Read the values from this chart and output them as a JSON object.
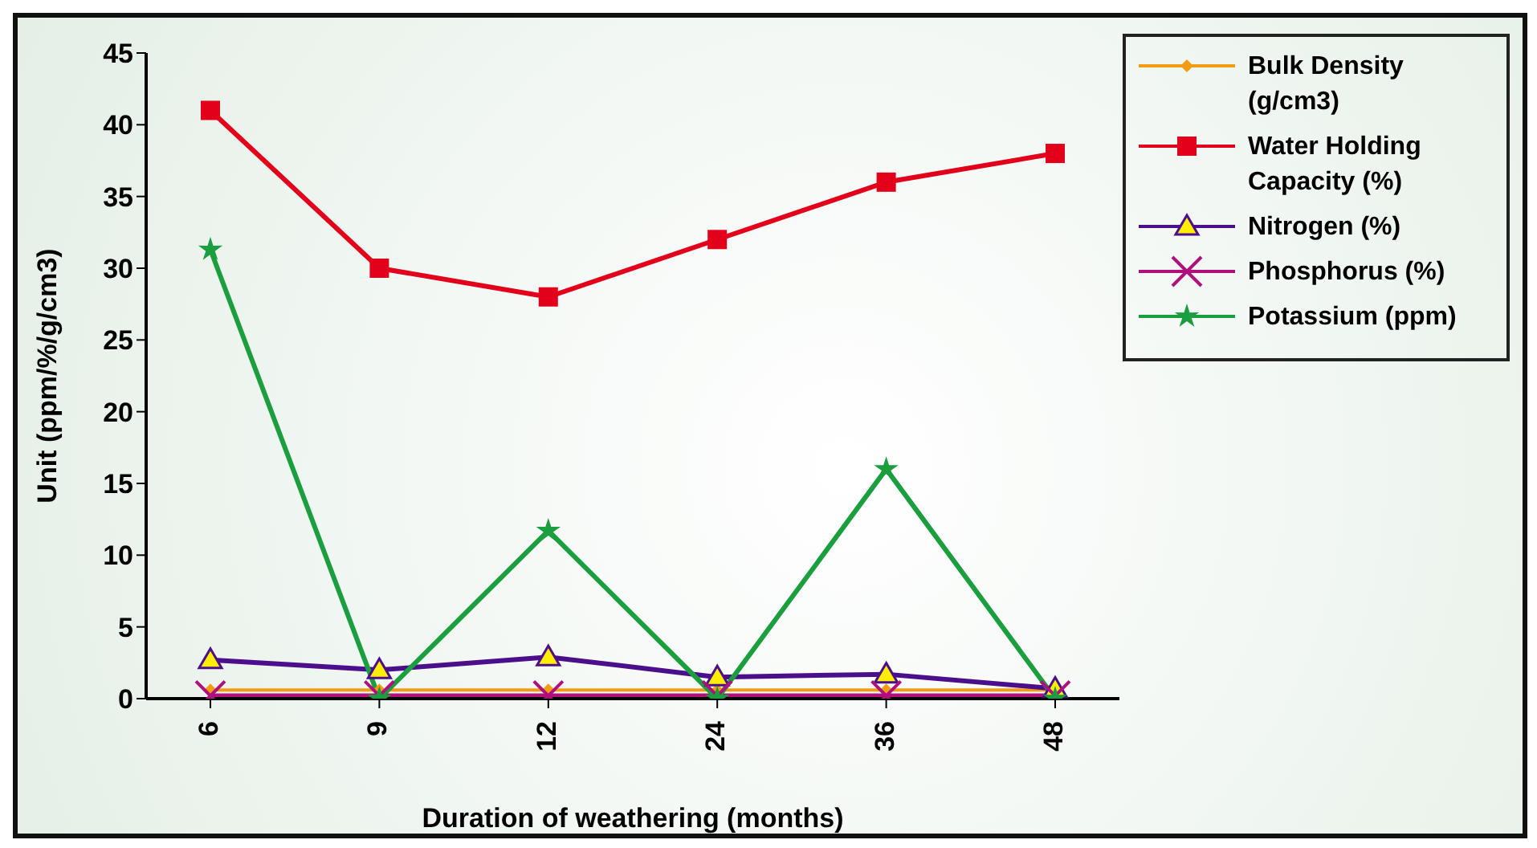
{
  "chart_data": {
    "type": "line",
    "xlabel": "Duration of weathering (months)",
    "ylabel": "Unit (ppm/%/g/cm3)",
    "categories": [
      "6",
      "9",
      "12",
      "24",
      "36",
      "48"
    ],
    "series": [
      {
        "name": "Bulk Density (g/cm3)",
        "color": "#f39c12",
        "marker": "diamond",
        "values": [
          0.6,
          0.6,
          0.6,
          0.6,
          0.6,
          0.6
        ]
      },
      {
        "name": "Water Holding Capacity (%)",
        "color": "#e3001b",
        "marker": "square",
        "values": [
          41,
          30,
          28,
          32,
          36,
          38
        ]
      },
      {
        "name": "Nitrogen (%)",
        "color": "#4b0f8c",
        "marker": "triangle",
        "values": [
          2.7,
          2.0,
          2.9,
          1.5,
          1.7,
          0.7
        ]
      },
      {
        "name": "Phosphorus (%)",
        "color": "#b0107e",
        "marker": "cross",
        "values": [
          0.2,
          0.2,
          0.2,
          0.2,
          0.2,
          0.2
        ]
      },
      {
        "name": "Potassium (ppm)",
        "color": "#1b9e3e",
        "marker": "star",
        "values": [
          31.3,
          0,
          11.7,
          0,
          16,
          0
        ]
      }
    ],
    "ylim": [
      0,
      45
    ],
    "yticks": [
      0,
      5,
      10,
      15,
      20,
      25,
      30,
      35,
      40,
      45
    ],
    "grid": false,
    "legend": "right",
    "line_style": "solid"
  }
}
